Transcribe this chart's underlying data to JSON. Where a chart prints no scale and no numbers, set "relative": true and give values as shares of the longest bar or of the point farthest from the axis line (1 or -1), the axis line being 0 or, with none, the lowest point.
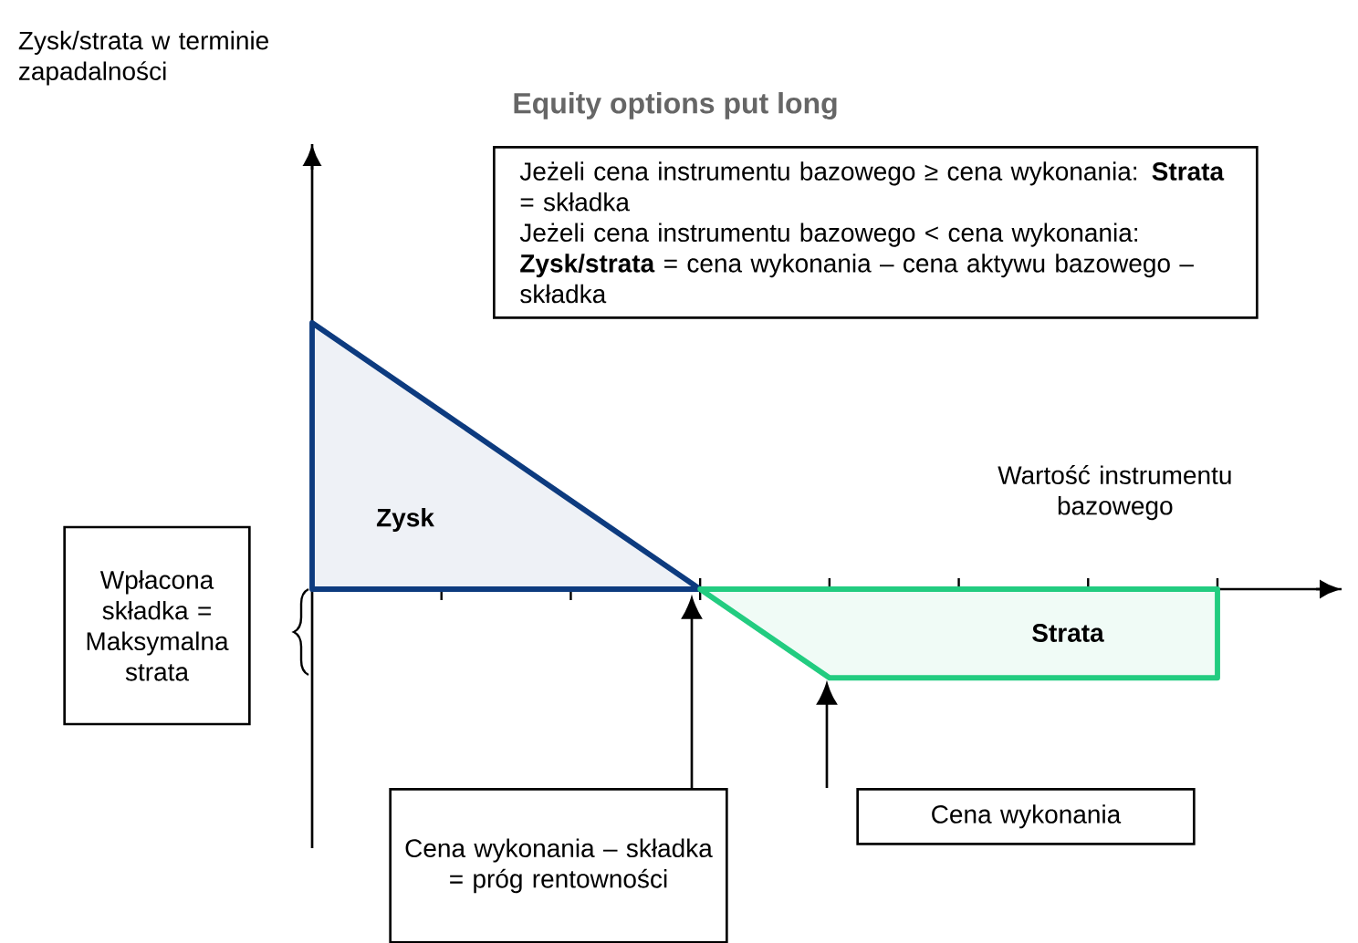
{
  "chart_data": {
    "type": "area",
    "relative": true,
    "title": "Equity options put long",
    "xlabel": "Wartość instrumentu bazowego",
    "categories": [
      null,
      null,
      null,
      null,
      null,
      null,
      null,
      null
    ],
    "series": [
      {
        "name": "Zysk",
        "color": "#0d3b7f",
        "values": [
          1,
          0.667,
          0.333,
          0,
          null,
          null,
          null,
          null
        ]
      },
      {
        "name": "Strata",
        "color": "#22cc80",
        "values": [
          null,
          null,
          null,
          0,
          -0.333,
          -0.333,
          -0.333,
          -0.333
        ]
      }
    ],
    "annotations": [
      "Jeżeli cena instrumentu bazowego ≥ cena wykonania: **Strata** = składka",
      "Jeżeli cena instrumentu bazowego < cena wykonania: **Zysk/strata** = cena wykonania – cena aktywu bazowego – składka",
      "Wpłacona składka = Maksymalna strata",
      "Cena wykonania – składka = próg rentowności",
      "Cena wykonania",
      "Zysk/strata w terminie zapadalności"
    ]
  }
}
